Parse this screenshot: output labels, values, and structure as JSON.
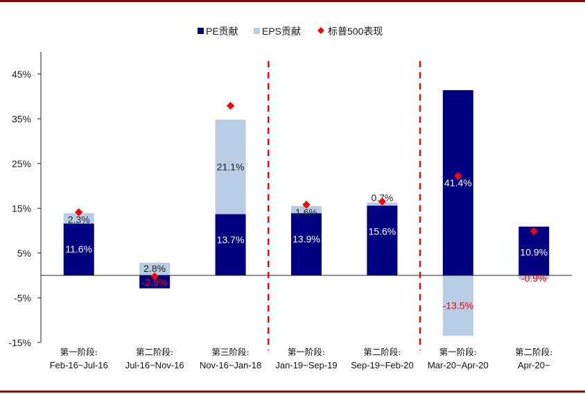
{
  "colors": {
    "pe": "#000080",
    "eps": "#b8cce4",
    "sp500": "#ff0000",
    "divider": "#ff0000",
    "frame": "#8b0000"
  },
  "chart_data": {
    "type": "bar",
    "stacked": true,
    "legend_position": "top-center",
    "grid": false,
    "ylim": [
      -15,
      50
    ],
    "yticks": [
      "45%",
      "35%",
      "25%",
      "15%",
      "5%",
      "-5%",
      "-15%"
    ],
    "ytick_values": [
      45,
      35,
      25,
      15,
      5,
      -5,
      -15
    ],
    "categories": [
      {
        "line1": "第一阶段:",
        "line2": "Feb-16~Jul-16"
      },
      {
        "line1": "第二阶段:",
        "line2": "Jul-16~Nov-16"
      },
      {
        "line1": "第三阶段:",
        "line2": "Nov-16~Jan-18"
      },
      {
        "line1": "第一阶段:",
        "line2": "Jan-19~Sep-19"
      },
      {
        "line1": "第二阶段:",
        "line2": "Sep-19~Feb-20"
      },
      {
        "line1": "第一阶段:",
        "line2": "Mar-20~Apr-20"
      },
      {
        "line1": "第二阶段:",
        "line2": "Apr-20~"
      }
    ],
    "series": [
      {
        "name": "PE贡献",
        "kind": "bar",
        "values": [
          11.6,
          -2.9,
          13.7,
          13.9,
          15.6,
          41.4,
          10.9
        ],
        "labels": [
          "11.6%",
          "-2.9%",
          "13.7%",
          "13.9%",
          "15.6%",
          "41.4%",
          "10.9%"
        ]
      },
      {
        "name": "EPS贡献",
        "kind": "bar",
        "values": [
          2.3,
          2.8,
          21.1,
          1.6,
          0.7,
          -13.5,
          -0.9
        ],
        "labels": [
          "2.3%",
          "2.8%",
          "21.1%",
          "1.6%",
          "0.7%",
          "-13.5%",
          "-0.9%"
        ]
      },
      {
        "name": "标普500表现",
        "kind": "marker",
        "values": [
          14.1,
          -0.2,
          37.9,
          15.8,
          16.5,
          22.2,
          9.9
        ]
      }
    ],
    "dividers_after_category": [
      2,
      4
    ]
  }
}
